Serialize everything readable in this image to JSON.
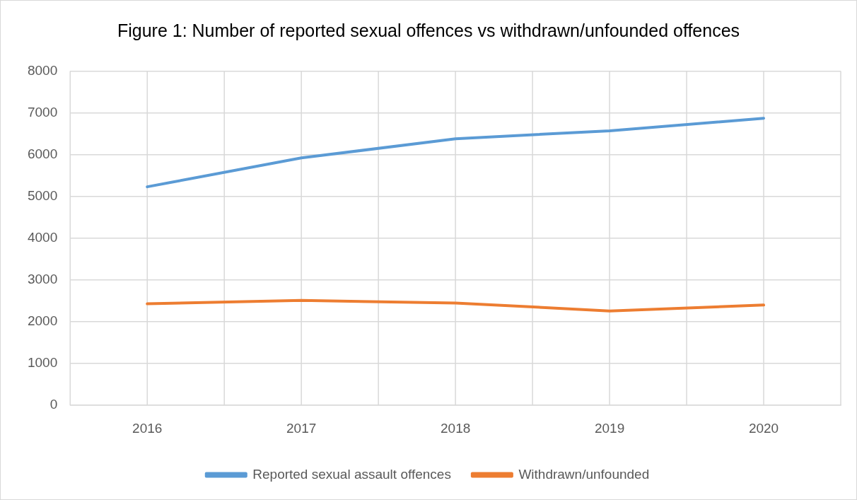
{
  "chart_data": {
    "type": "line",
    "title": "Figure 1: Number of reported sexual offences vs withdrawn/unfounded offences",
    "categories": [
      "2016",
      "2017",
      "2018",
      "2019",
      "2020"
    ],
    "series": [
      {
        "name": "Reported sexual assault offences",
        "color": "#5b9bd5",
        "values": [
          5230,
          5920,
          6380,
          6570,
          6870
        ]
      },
      {
        "name": "Withdrawn/unfounded",
        "color": "#ed7d31",
        "values": [
          2430,
          2510,
          2450,
          2260,
          2400
        ]
      }
    ],
    "ylim": [
      0,
      8000
    ],
    "yticks": [
      0,
      1000,
      2000,
      3000,
      4000,
      5000,
      6000,
      7000,
      8000
    ],
    "grid": true,
    "legend": "bottom",
    "marker": "none",
    "line_style": "solid"
  }
}
